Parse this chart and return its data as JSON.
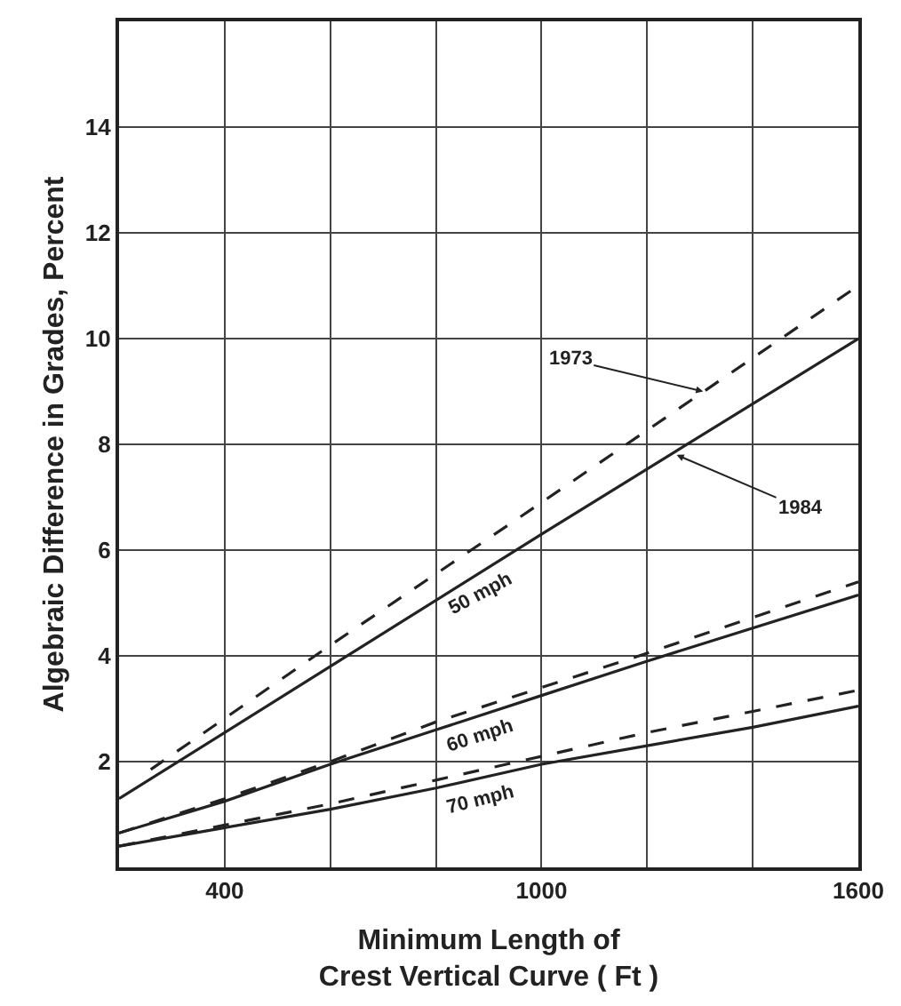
{
  "chart_data": {
    "type": "line",
    "xlabel": "Minimum Length of\nCrest Vertical Curve ( Ft )",
    "ylabel": "Algebraic Difference in Grades, Percent",
    "xlim": [
      200,
      1600
    ],
    "xticks": [
      400,
      {
        "value": 600,
        "label": null
      },
      {
        "value": 800,
        "label": null
      },
      1000,
      {
        "value": 1200,
        "label": null
      },
      {
        "value": 1400,
        "label": null
      },
      1600
    ],
    "ylim": [
      0,
      16
    ],
    "yticks": [
      2,
      4,
      6,
      8,
      10,
      12,
      14
    ],
    "grid": true,
    "series": [
      {
        "color": "#222222",
        "line_style": "dashed",
        "x": [
          260,
          600,
          1000,
          1600
        ],
        "values": [
          1.85,
          4.2,
          6.9,
          11.0
        ]
      },
      {
        "color": "#222222",
        "line_style": "solid",
        "x": [
          200,
          600,
          1000,
          1600
        ],
        "values": [
          1.3,
          3.8,
          6.3,
          10.0
        ]
      },
      {
        "color": "#222222",
        "line_style": "dashed",
        "x": [
          200,
          400,
          600,
          800,
          1000,
          1200,
          1600
        ],
        "values": [
          0.65,
          1.3,
          2.0,
          2.75,
          3.4,
          4.05,
          5.4
        ]
      },
      {
        "color": "#222222",
        "line_style": "solid",
        "x": [
          200,
          400,
          600,
          800,
          1000,
          1200,
          1600
        ],
        "values": [
          0.65,
          1.25,
          1.95,
          2.6,
          3.25,
          3.9,
          5.15
        ]
      },
      {
        "color": "#222222",
        "line_style": "dashed",
        "x": [
          200,
          400,
          600,
          800,
          1000,
          1200,
          1400,
          1600
        ],
        "values": [
          0.4,
          0.8,
          1.2,
          1.65,
          2.1,
          2.55,
          2.95,
          3.35
        ]
      },
      {
        "color": "#222222",
        "line_style": "solid",
        "x": [
          200,
          400,
          600,
          800,
          1000,
          1200,
          1400,
          1600
        ],
        "values": [
          0.4,
          0.75,
          1.1,
          1.5,
          1.95,
          2.3,
          2.65,
          3.05
        ]
      }
    ],
    "annotations": [
      {
        "text": "1973",
        "x": 1306,
        "y": 9.0
      },
      {
        "text": "1984",
        "x": 1256,
        "y": 7.8
      },
      "50 mph",
      "60 mph",
      "70 mph"
    ]
  }
}
